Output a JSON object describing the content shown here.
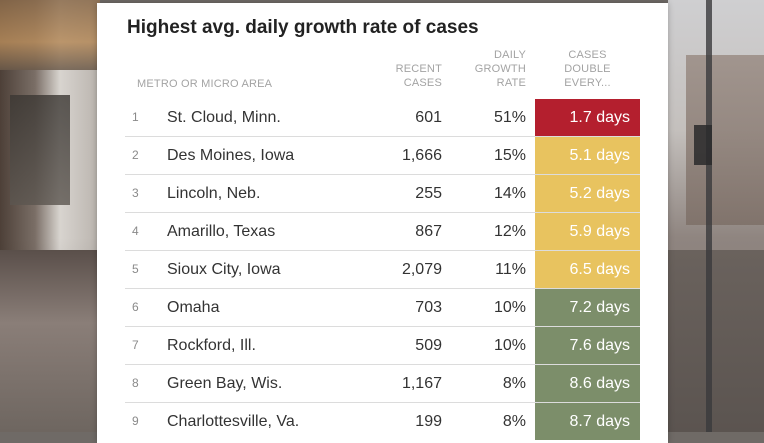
{
  "title": "Highest avg. daily growth rate of cases",
  "columns": {
    "metro": "METRO OR MICRO AREA",
    "cases": [
      "RECENT",
      "CASES"
    ],
    "rate": [
      "DAILY",
      "GROWTH",
      "RATE"
    ],
    "double": [
      "CASES",
      "DOUBLE",
      "EVERY..."
    ]
  },
  "colors": {
    "fast": "#b41f2e",
    "medium": "#e8c35f",
    "slow": "#7c8e6a"
  },
  "rows": [
    {
      "rank": "1",
      "area": "St. Cloud, Minn.",
      "cases": "601",
      "rate": "51%",
      "double": "1.7 days",
      "tier": "fast"
    },
    {
      "rank": "2",
      "area": "Des Moines, Iowa",
      "cases": "1,666",
      "rate": "15%",
      "double": "5.1 days",
      "tier": "medium"
    },
    {
      "rank": "3",
      "area": "Lincoln, Neb.",
      "cases": "255",
      "rate": "14%",
      "double": "5.2 days",
      "tier": "medium"
    },
    {
      "rank": "4",
      "area": "Amarillo, Texas",
      "cases": "867",
      "rate": "12%",
      "double": "5.9 days",
      "tier": "medium"
    },
    {
      "rank": "5",
      "area": "Sioux City, Iowa",
      "cases": "2,079",
      "rate": "11%",
      "double": "6.5 days",
      "tier": "medium"
    },
    {
      "rank": "6",
      "area": "Omaha",
      "cases": "703",
      "rate": "10%",
      "double": "7.2 days",
      "tier": "slow"
    },
    {
      "rank": "7",
      "area": "Rockford, Ill.",
      "cases": "509",
      "rate": "10%",
      "double": "7.6 days",
      "tier": "slow"
    },
    {
      "rank": "8",
      "area": "Green Bay, Wis.",
      "cases": "1,167",
      "rate": "8%",
      "double": "8.6 days",
      "tier": "slow"
    },
    {
      "rank": "9",
      "area": "Charlottesville, Va.",
      "cases": "199",
      "rate": "8%",
      "double": "8.7 days",
      "tier": "slow"
    }
  ]
}
